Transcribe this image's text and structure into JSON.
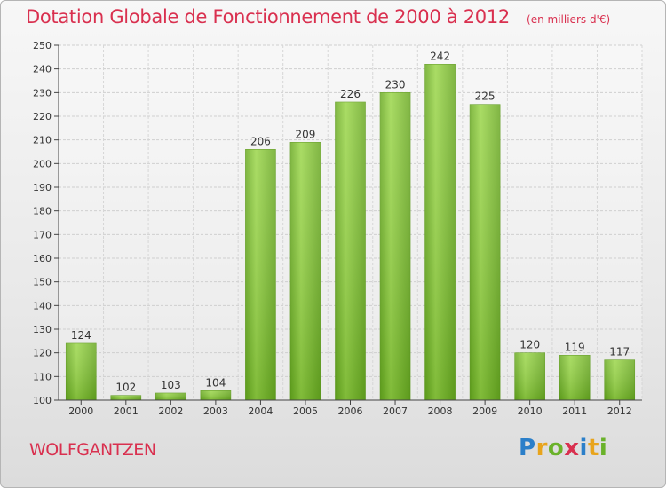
{
  "chart_data": {
    "type": "bar",
    "title": "Dotation Globale de Fonctionnement de 2000 à 2012",
    "subtitle": "(en milliers d'€)",
    "xlabel": "",
    "ylabel": "",
    "categories": [
      "2000",
      "2001",
      "2002",
      "2003",
      "2004",
      "2005",
      "2006",
      "2007",
      "2008",
      "2009",
      "2010",
      "2011",
      "2012"
    ],
    "values": [
      124,
      102,
      103,
      104,
      206,
      209,
      226,
      230,
      242,
      225,
      120,
      119,
      117
    ],
    "ylim": [
      100,
      250
    ],
    "yticks": [
      100,
      110,
      120,
      130,
      140,
      150,
      160,
      170,
      180,
      190,
      200,
      210,
      220,
      230,
      240,
      250
    ],
    "grid": true,
    "bar_color": "#7cc12f"
  },
  "commune": "WOLFGANTZEN",
  "logo": {
    "letters": [
      "P",
      "r",
      "o",
      "x",
      "i",
      "t",
      "i"
    ]
  }
}
